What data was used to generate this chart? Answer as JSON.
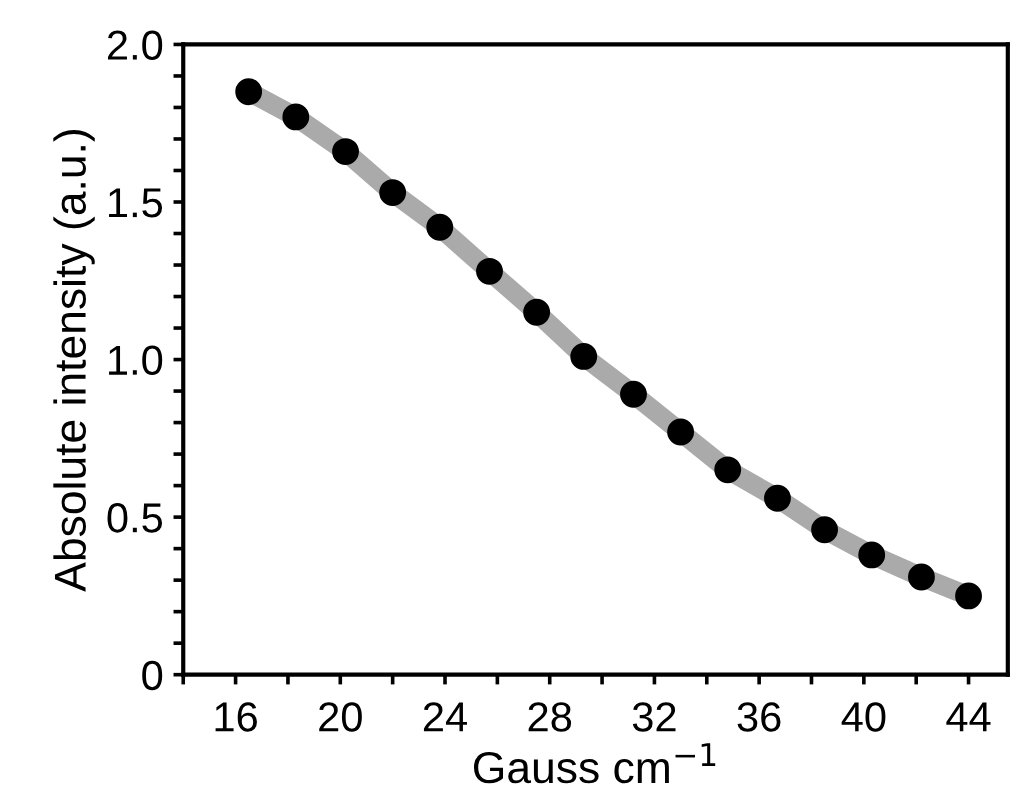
{
  "chart_data": {
    "type": "scatter",
    "xlabel": "Gauss cm$^{−1}$",
    "ylabel": "Absolute intensity (a.u.)",
    "x": [
      16.5,
      18.3,
      20.2,
      22.0,
      23.8,
      25.7,
      27.5,
      29.3,
      31.2,
      33.0,
      34.8,
      36.7,
      38.5,
      40.3,
      42.2,
      44.0
    ],
    "series": [
      {
        "type": "line",
        "color": "#aaaaaa",
        "marker": "none",
        "line_style": "solid",
        "values": [
          1.85,
          1.77,
          1.66,
          1.53,
          1.42,
          1.28,
          1.15,
          1.01,
          0.89,
          0.77,
          0.65,
          0.56,
          0.46,
          0.38,
          0.31,
          0.25
        ]
      },
      {
        "color": "#000000",
        "marker": "circle",
        "values": [
          1.85,
          1.77,
          1.66,
          1.53,
          1.42,
          1.28,
          1.15,
          1.01,
          0.89,
          0.77,
          0.65,
          0.56,
          0.46,
          0.38,
          0.31,
          0.25
        ]
      }
    ],
    "xlim": [
      14,
      45.5
    ],
    "ylim": [
      0,
      2.0
    ],
    "xticks": [
      {
        "value": 14,
        "label": null
      },
      16,
      {
        "value": 18,
        "label": null
      },
      20,
      {
        "value": 22,
        "label": null
      },
      24,
      {
        "value": 26,
        "label": null
      },
      28,
      {
        "value": 30,
        "label": null
      },
      32,
      {
        "value": 34,
        "label": null
      },
      36,
      {
        "value": 38,
        "label": null
      },
      40,
      {
        "value": 42,
        "label": null
      },
      44
    ],
    "yticks": [
      0,
      {
        "value": 0.1,
        "label": null
      },
      {
        "value": 0.2,
        "label": null
      },
      {
        "value": 0.3,
        "label": null
      },
      {
        "value": 0.4,
        "label": null
      },
      0.5,
      {
        "value": 0.6,
        "label": null
      },
      {
        "value": 0.7,
        "label": null
      },
      {
        "value": 0.8,
        "label": null
      },
      {
        "value": 0.9,
        "label": null
      },
      {
        "value": 1.0,
        "label": "1.0"
      },
      {
        "value": 1.1,
        "label": null
      },
      {
        "value": 1.2,
        "label": null
      },
      {
        "value": 1.3,
        "label": null
      },
      {
        "value": 1.4,
        "label": null
      },
      {
        "value": 1.5,
        "label": "1.5"
      },
      {
        "value": 1.6,
        "label": null
      },
      {
        "value": 1.7,
        "label": null
      },
      {
        "value": 1.8,
        "label": null
      },
      {
        "value": 1.9,
        "label": null
      },
      {
        "value": 2.0,
        "label": "2.0"
      }
    ],
    "grid": false,
    "legend": false
  }
}
